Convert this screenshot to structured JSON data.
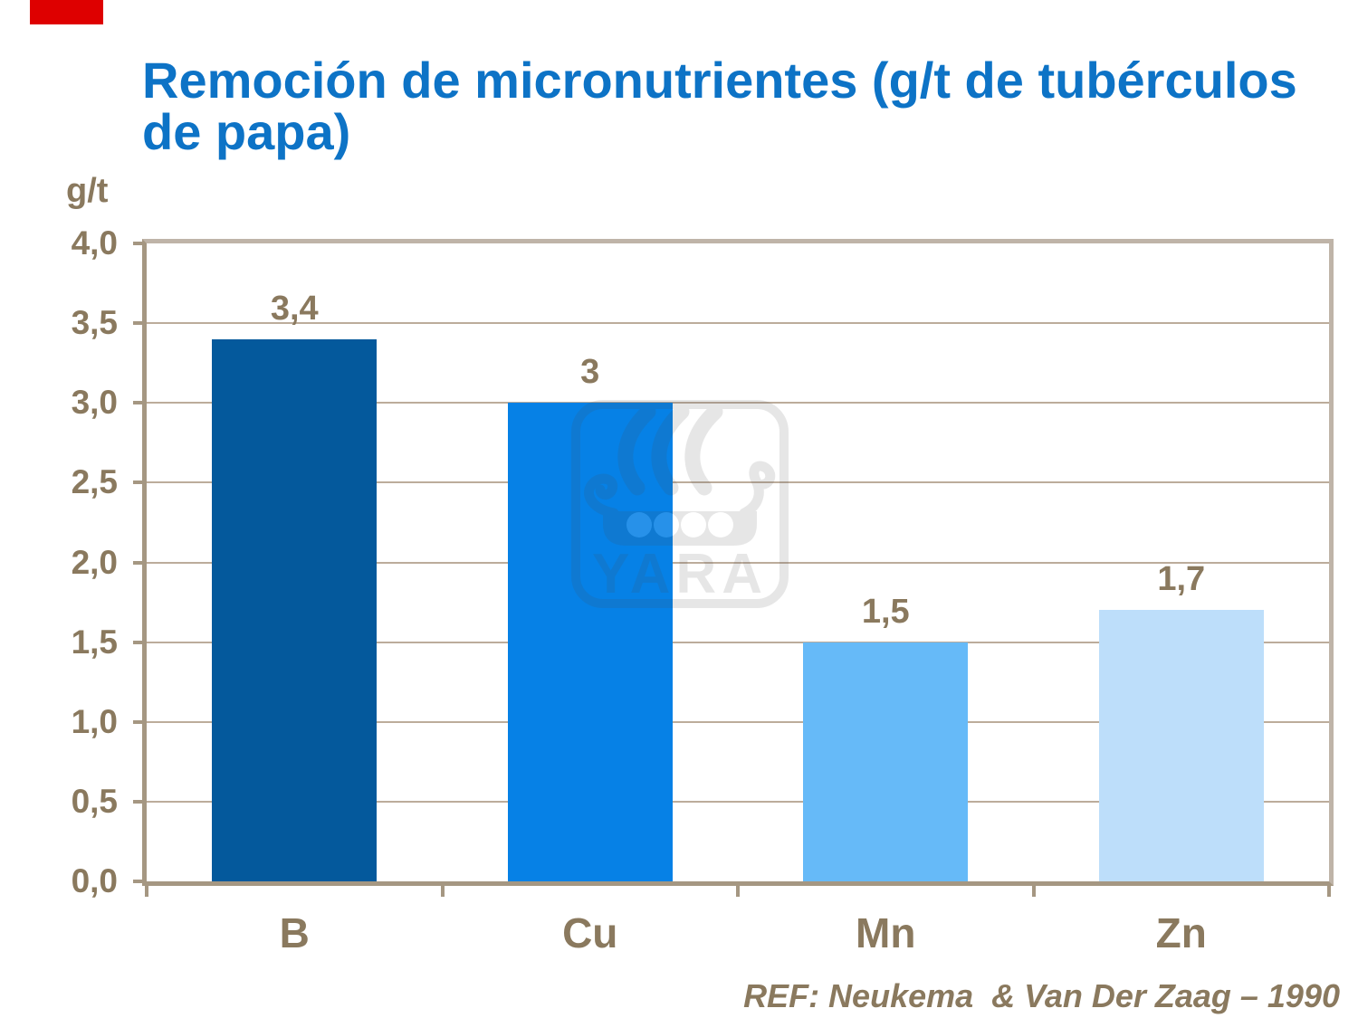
{
  "page": {
    "background": "#FFFFFF"
  },
  "decoration": {
    "red_block_color": "#DE0000"
  },
  "title": {
    "text": "Remoción de micronutrientes (g/t de tubérculos de papa)",
    "lines": [
      "Remoción de micronutrientes (g/t de tubérculos",
      "de papa)"
    ],
    "color": "#0D73C6"
  },
  "watermark": {
    "name": "Yara logo",
    "text": "YARA",
    "color": "#4A4A4A"
  },
  "reference": "REF: Neukema  & Van Der Zaag – 1990",
  "chart_data": {
    "type": "bar",
    "title": "Remoción de micronutrientes (g/t de tubérculos de papa)",
    "categories": [
      "B",
      "Cu",
      "Mn",
      "Zn"
    ],
    "values": [
      3.4,
      3,
      1.5,
      1.7
    ],
    "value_labels": [
      "3,4",
      "3",
      "1,5",
      "1,7"
    ],
    "bar_colors": [
      "#04599C",
      "#0681E6",
      "#66BAF8",
      "#BDDEFA"
    ],
    "xlabel": "",
    "ylabel": "g/t",
    "ylim": [
      0,
      4
    ],
    "ytick_step": 0.5,
    "ytick_labels": [
      "0,0",
      "0,5",
      "1,0",
      "1,5",
      "2,0",
      "2,5",
      "3,0",
      "3,5",
      "4,0"
    ],
    "grid": true,
    "legend": false,
    "text_color": "#8A795E",
    "grid_color": "#BCAC9B",
    "axis_color": "#A59782",
    "frame_color": "#BFB4A8"
  }
}
